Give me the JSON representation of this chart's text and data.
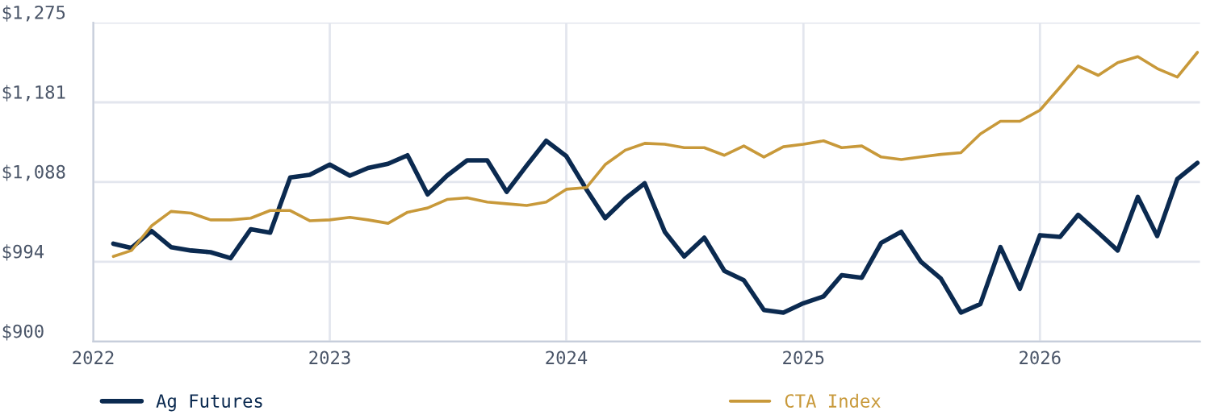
{
  "chart_data": {
    "type": "line",
    "x": [
      "2022-02",
      "2022-03",
      "2022-04",
      "2022-05",
      "2022-06",
      "2022-07",
      "2022-08",
      "2022-09",
      "2022-10",
      "2022-11",
      "2022-12",
      "2023-01",
      "2023-02",
      "2023-03",
      "2023-04",
      "2023-05",
      "2023-06",
      "2023-07",
      "2023-08",
      "2023-09",
      "2023-10",
      "2023-11",
      "2023-12",
      "2024-01",
      "2024-02",
      "2024-03",
      "2024-04",
      "2024-05",
      "2024-06",
      "2024-07",
      "2024-08",
      "2024-09",
      "2024-10",
      "2024-11",
      "2024-12",
      "2025-01",
      "2025-02",
      "2025-03",
      "2025-04",
      "2025-05",
      "2025-06",
      "2025-07",
      "2025-08",
      "2025-09",
      "2025-10",
      "2025-11",
      "2025-12",
      "2026-01",
      "2026-02",
      "2026-03",
      "2026-04",
      "2026-05",
      "2026-06",
      "2026-07",
      "2026-08",
      "2026-09"
    ],
    "series": [
      {
        "name": "Ag Futures",
        "color": "#0b2a50",
        "values": [
          1015,
          1010,
          1030,
          1011,
          1007,
          1005,
          998,
          1032,
          1028,
          1093,
          1096,
          1108,
          1095,
          1104,
          1109,
          1119,
          1073,
          1095,
          1113,
          1113,
          1076,
          1107,
          1136,
          1118,
          1079,
          1045,
          1068,
          1086,
          1029,
          1000,
          1022,
          983,
          972,
          937,
          934,
          945,
          953,
          978,
          975,
          1016,
          1029,
          994,
          974,
          934,
          944,
          1011,
          962,
          1025,
          1023,
          1049,
          1028,
          1007,
          1070,
          1024,
          1091,
          1110
        ]
      },
      {
        "name": "CTA Index",
        "color": "#c8993a",
        "values": [
          1000,
          1007,
          1036,
          1053,
          1051,
          1043,
          1043,
          1045,
          1054,
          1054,
          1042,
          1043,
          1046,
          1043,
          1039,
          1052,
          1057,
          1067,
          1069,
          1064,
          1062,
          1060,
          1064,
          1079,
          1081,
          1108,
          1125,
          1133,
          1132,
          1128,
          1128,
          1119,
          1130,
          1117,
          1129,
          1132,
          1136,
          1128,
          1130,
          1117,
          1114,
          1117,
          1120,
          1122,
          1144,
          1159,
          1159,
          1172,
          1199,
          1224,
          1213,
          1228,
          1235,
          1221,
          1211,
          1240
        ]
      }
    ],
    "xlim": [
      "2022-01",
      "2026-09-05"
    ],
    "xticks": [
      {
        "value": "2022-01",
        "label": "2022"
      },
      {
        "value": "2023-01",
        "label": "2023"
      },
      {
        "value": "2024-01",
        "label": "2024"
      },
      {
        "value": "2025-01",
        "label": "2025"
      },
      {
        "value": "2026-01",
        "label": "2026"
      }
    ],
    "ylim": [
      900,
      1275
    ],
    "yticks": [
      {
        "value": 900,
        "label": "$900"
      },
      {
        "value": 993.75,
        "label": "$994"
      },
      {
        "value": 1087.5,
        "label": "$1,088"
      },
      {
        "value": 1181.25,
        "label": "$1,181"
      },
      {
        "value": 1275,
        "label": "$1,275"
      }
    ],
    "grid": true,
    "legend": "bottom",
    "marker": "none",
    "line_style": "solid"
  }
}
